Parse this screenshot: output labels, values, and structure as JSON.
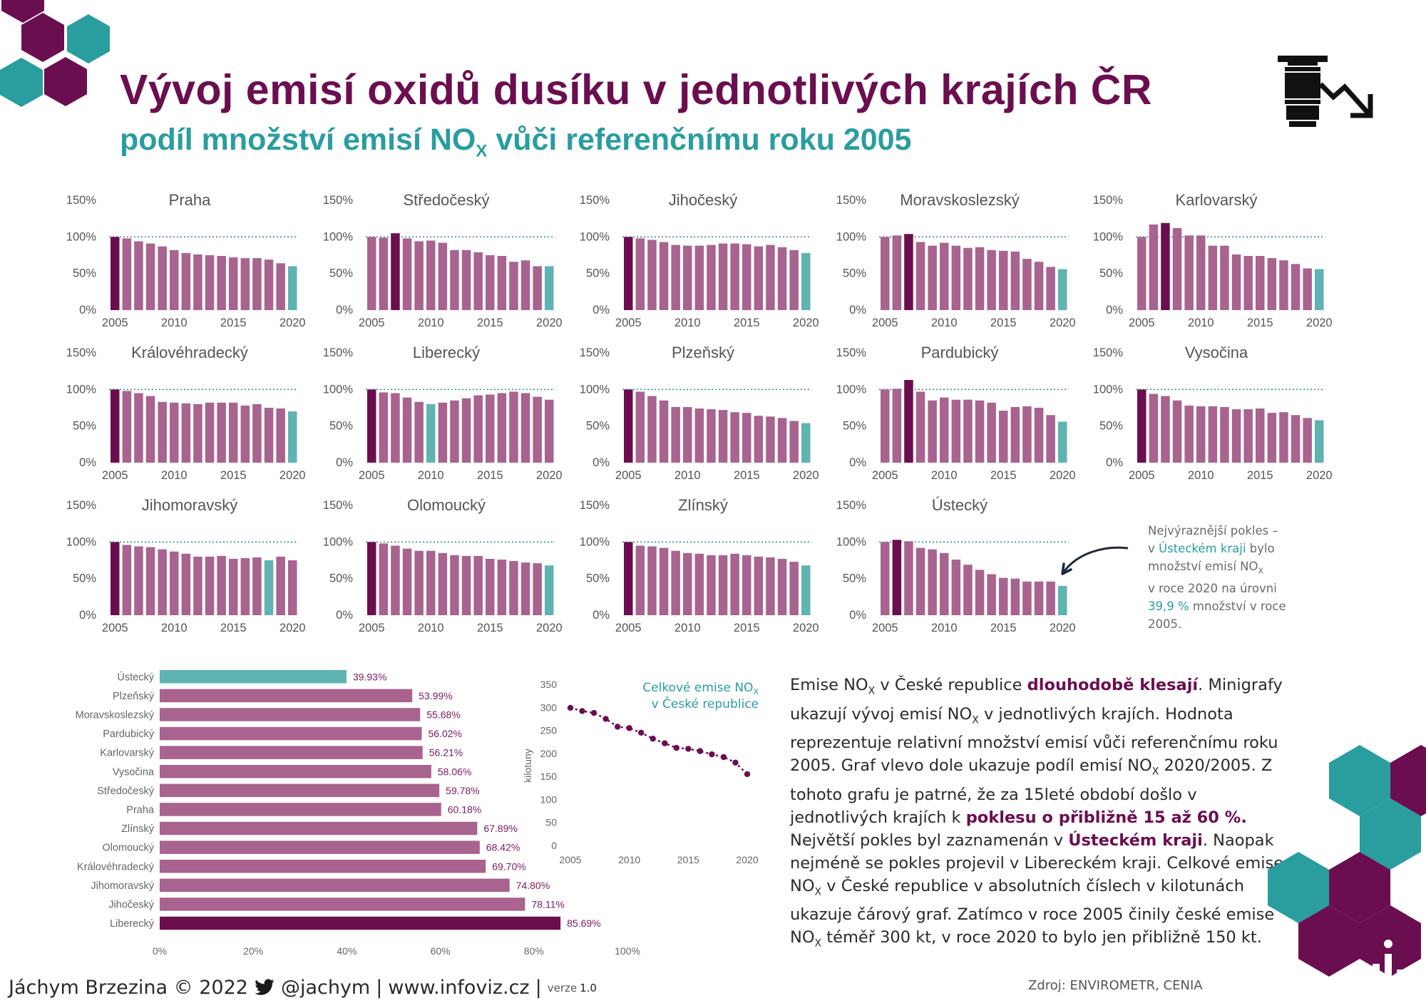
{
  "title": "Vývoj emisí oxidů dusíku v jednotlivých krajích ČR",
  "subtitle": {
    "text": "podíl množství emisí NO",
    "sub": "X",
    "text2": " vůči referenčnímu roku 2005"
  },
  "annotation": {
    "line1": "Nejvýraznější pokles –",
    "line2a": "v ",
    "line2b": "Ústeckém kraji",
    "line2c": " bylo",
    "line3": "množství emisí NO",
    "line3sub": "X",
    "line4": "v roce 2020 na úrovni",
    "line5a": "39,9 %",
    "line5b": " množství v roce",
    "line6": "2005."
  },
  "description": {
    "s1": "Emise NO",
    "s1sub": "X",
    "s2": " v České republice ",
    "s3": "dlouhodobě klesají",
    "s4": ". Minigrafy ukazují vývoj emisí NO",
    "s4sub": "X",
    "s5": " v jednotlivých krajích. Hodnota reprezentuje relativní množství emisí vůči referenčnímu roku 2005. Graf vlevo dole ukazuje podíl emisí NO",
    "s5sub": "X",
    "s6": " 2020/2005. Z tohoto grafu je patrné, že za 15leté období došlo v jednotlivých krajích k ",
    "s7": "poklesu o přibližně 15 až 60 %.",
    "s8": " Největší pokles byl zaznamenán v ",
    "s9": "Ústeckém kraji",
    "s10": ". Naopak nejméně se pokles projevil v Libereckém kraji. Celkové emise NO",
    "s10sub": "X",
    "s11": " v České republice v absolutních číslech v kilotunách ukazuje čárový graf. Zatímco v roce 2005 činily české emise NO",
    "s11sub": "X",
    "s12": " téměř 300 kt, v roce 2020 to bylo jen přibližně 150 kt."
  },
  "footer": {
    "author": "Jáchym Brzezina © 2022",
    "twitter": "@jachym",
    "sep": "|",
    "web": "www.infoviz.cz",
    "version_label": "verze",
    "version": "1.0"
  },
  "source": "Zdroj: ENVIROMETR, CENIA",
  "colors": {
    "dark": "#6b0e4f",
    "bar": "#a8638f",
    "teal": "#5fb3b1",
    "line_dot": "#6b0e4f"
  },
  "chart_data": [
    {
      "type": "bar",
      "id": "regional-minicharts",
      "yticks": [
        "150%",
        "100%",
        "50%",
        "0%"
      ],
      "ylim": [
        0,
        150
      ],
      "reference_line": 100,
      "x": [
        2005,
        2006,
        2007,
        2008,
        2009,
        2010,
        2011,
        2012,
        2013,
        2014,
        2015,
        2016,
        2017,
        2018,
        2019,
        2020
      ],
      "xticks": [
        "2005",
        "2010",
        "2015",
        "2020"
      ],
      "panels": [
        {
          "name": "Praha",
          "values": [
            100,
            98,
            94,
            91,
            87,
            82,
            78,
            76,
            75,
            74,
            72,
            71,
            71,
            69,
            64,
            60
          ],
          "dark": 0,
          "teal": 15
        },
        {
          "name": "Středočeský",
          "values": [
            100,
            99,
            105,
            98,
            94,
            95,
            92,
            82,
            82,
            79,
            75,
            74,
            66,
            68,
            60,
            60
          ],
          "dark": 2,
          "teal": 15
        },
        {
          "name": "Jihočeský",
          "values": [
            100,
            98,
            96,
            93,
            89,
            88,
            88,
            89,
            91,
            91,
            90,
            87,
            89,
            86,
            82,
            78
          ],
          "dark": 0,
          "teal": 15
        },
        {
          "name": "Moravskoslezský",
          "values": [
            100,
            102,
            104,
            93,
            88,
            92,
            88,
            85,
            86,
            82,
            81,
            80,
            70,
            66,
            59,
            56
          ],
          "dark": 2,
          "teal": 15
        },
        {
          "name": "Karlovarský",
          "values": [
            100,
            117,
            119,
            112,
            102,
            102,
            88,
            88,
            76,
            74,
            74,
            71,
            68,
            63,
            57,
            56
          ],
          "dark": 2,
          "teal": 15
        },
        {
          "name": "Královéhradecký",
          "values": [
            100,
            98,
            95,
            91,
            83,
            82,
            81,
            80,
            82,
            82,
            82,
            78,
            80,
            75,
            74,
            70
          ],
          "dark": 0,
          "teal": 15
        },
        {
          "name": "Liberecký",
          "values": [
            100,
            96,
            95,
            89,
            83,
            80,
            82,
            85,
            88,
            92,
            93,
            95,
            97,
            95,
            90,
            86
          ],
          "dark": 0,
          "teal": 5
        },
        {
          "name": "Plzeňský",
          "values": [
            100,
            97,
            91,
            85,
            76,
            76,
            74,
            73,
            72,
            69,
            68,
            64,
            63,
            61,
            57,
            54
          ],
          "dark": 0,
          "teal": 15
        },
        {
          "name": "Pardubický",
          "values": [
            100,
            101,
            113,
            97,
            85,
            89,
            86,
            86,
            85,
            82,
            71,
            76,
            77,
            75,
            65,
            56
          ],
          "dark": 2,
          "teal": 15
        },
        {
          "name": "Vysočina",
          "values": [
            100,
            94,
            91,
            85,
            78,
            77,
            77,
            76,
            73,
            73,
            74,
            68,
            69,
            65,
            61,
            58
          ],
          "dark": 0,
          "teal": 15
        },
        {
          "name": "Jihomoravský",
          "values": [
            100,
            96,
            94,
            93,
            90,
            87,
            84,
            80,
            80,
            81,
            77,
            78,
            79,
            75,
            80,
            75
          ],
          "dark": 0,
          "teal": 13
        },
        {
          "name": "Olomoucký",
          "values": [
            100,
            98,
            95,
            91,
            88,
            88,
            85,
            82,
            81,
            81,
            77,
            76,
            74,
            72,
            71,
            68
          ],
          "dark": 0,
          "teal": 15
        },
        {
          "name": "Zlínský",
          "values": [
            100,
            95,
            94,
            92,
            88,
            85,
            84,
            82,
            82,
            84,
            82,
            80,
            79,
            77,
            73,
            68
          ],
          "dark": 0,
          "teal": 15
        },
        {
          "name": "Ústecký",
          "values": [
            100,
            103,
            101,
            92,
            90,
            85,
            76,
            69,
            62,
            56,
            51,
            50,
            46,
            46,
            46,
            40
          ],
          "dark": 1,
          "teal": 15
        }
      ]
    },
    {
      "type": "bar",
      "id": "ratio-2020-2005",
      "orientation": "horizontal",
      "categories": [
        "Ústecký",
        "Plzeňský",
        "Moravskoslezský",
        "Pardubický",
        "Karlovarský",
        "Vysočina",
        "Středočeský",
        "Praha",
        "Zlínský",
        "Olomoucký",
        "Královéhradecký",
        "Jihomoravský",
        "Jihočeský",
        "Liberecký"
      ],
      "values": [
        39.93,
        53.99,
        55.68,
        56.02,
        56.21,
        58.06,
        59.78,
        60.18,
        67.89,
        68.42,
        69.7,
        74.8,
        78.11,
        85.69
      ],
      "labels": [
        "39.93%",
        "53.99%",
        "55.68%",
        "56.02%",
        "56.21%",
        "58.06%",
        "59.78%",
        "60.18%",
        "67.89%",
        "68.42%",
        "69.70%",
        "74.80%",
        "78.11%",
        "85.69%"
      ],
      "xticks": [
        "0%",
        "20%",
        "40%",
        "60%",
        "80%",
        "100%"
      ],
      "xlim": [
        0,
        100
      ]
    },
    {
      "type": "line",
      "id": "total-emissions",
      "title": "Celkové emise NO",
      "title_sub": "X",
      "title2": "v České republice",
      "ylabel": "kilotuny",
      "x": [
        2005,
        2006,
        2007,
        2008,
        2009,
        2010,
        2011,
        2012,
        2013,
        2014,
        2015,
        2016,
        2017,
        2018,
        2019,
        2020
      ],
      "values": [
        299,
        292,
        288,
        275,
        258,
        255,
        245,
        232,
        222,
        212,
        210,
        205,
        198,
        192,
        180,
        155
      ],
      "yticks": [
        "350",
        "300",
        "250",
        "200",
        "150",
        "100",
        "50",
        "0"
      ],
      "ylim": [
        0,
        350
      ],
      "xticks": [
        "2005",
        "2010",
        "2015",
        "2020"
      ]
    }
  ]
}
